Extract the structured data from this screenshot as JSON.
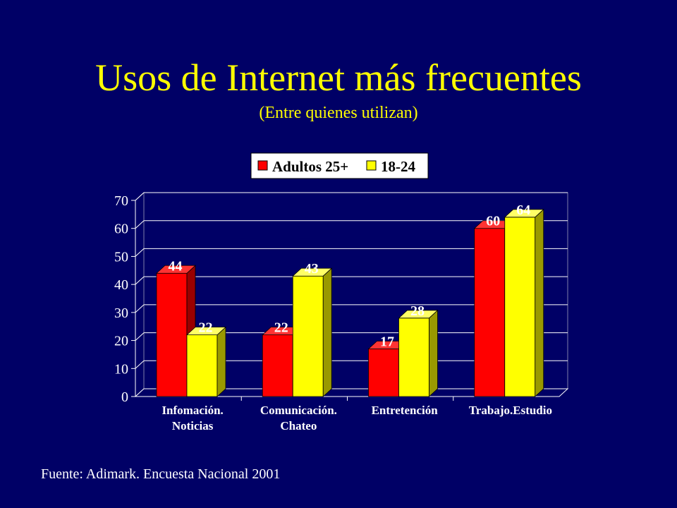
{
  "slide": {
    "title": "Usos de Internet más frecuentes",
    "subtitle": "(Entre quienes utilizan)",
    "source": "Fuente: Adimark. Encuesta Nacional 2001"
  },
  "colors": {
    "background": "#000066",
    "title": "#ffff00",
    "series1": "#ff0000",
    "series2": "#ffff00"
  },
  "chart_data": {
    "type": "bar",
    "categories": [
      [
        "Infomación.",
        "Noticias"
      ],
      [
        "Comunicación.",
        "Chateo"
      ],
      [
        "Entretención"
      ],
      [
        "Trabajo.Estudio"
      ]
    ],
    "series": [
      {
        "name": "Adultos 25+",
        "values": [
          44,
          22,
          17,
          60
        ]
      },
      {
        "name": "18-24",
        "values": [
          22,
          43,
          28,
          64
        ]
      }
    ],
    "ylim": [
      0,
      70
    ],
    "yticks": [
      0,
      10,
      20,
      30,
      40,
      50,
      60,
      70
    ],
    "grid": true,
    "legend": "top",
    "title": "",
    "xlabel": "",
    "ylabel": ""
  }
}
